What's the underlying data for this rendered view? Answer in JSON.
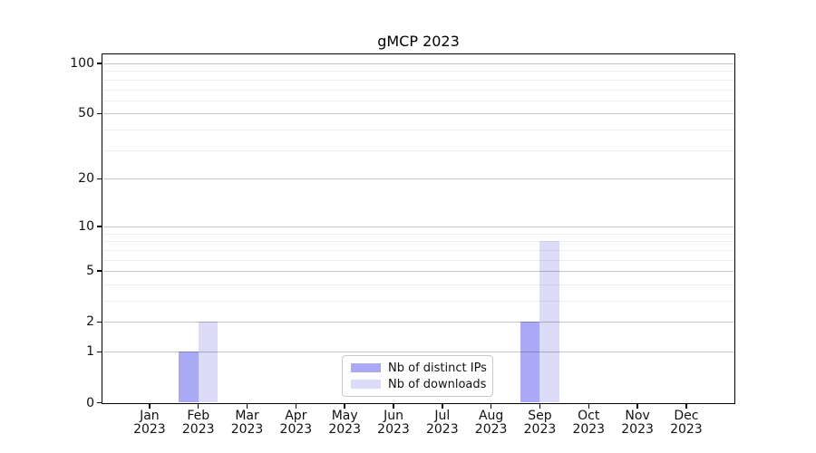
{
  "title": "gMCP 2023",
  "legend": {
    "items": [
      {
        "label": "Nb of distinct IPs",
        "color": "#a9a9f6"
      },
      {
        "label": "Nb of downloads",
        "color": "#dcdcf8"
      }
    ]
  },
  "chart_data": {
    "type": "bar",
    "title": "gMCP 2023",
    "categories": [
      "Jan 2023",
      "Feb 2023",
      "Mar 2023",
      "Apr 2023",
      "May 2023",
      "Jun 2023",
      "Jul 2023",
      "Aug 2023",
      "Sep 2023",
      "Oct 2023",
      "Nov 2023",
      "Dec 2023"
    ],
    "series": [
      {
        "name": "Nb of distinct IPs",
        "color": "#a9a9f6",
        "values": [
          0,
          1,
          0,
          0,
          0,
          0,
          0,
          0,
          2,
          0,
          0,
          0
        ]
      },
      {
        "name": "Nb of downloads",
        "color": "#dcdcf8",
        "values": [
          0,
          2,
          0,
          0,
          0,
          0,
          0,
          0,
          8,
          0,
          0,
          0
        ]
      }
    ],
    "xlabel": "",
    "ylabel": "",
    "y_scale": "log1p",
    "y_major_ticks": [
      0,
      1,
      2,
      5,
      10,
      20,
      50,
      100
    ],
    "y_minor_gridlines": [
      3,
      4,
      6,
      7,
      8,
      9,
      30,
      40,
      60,
      70,
      80,
      90
    ],
    "ylim": [
      0,
      110
    ],
    "grid": true,
    "legend_position": "lower center"
  }
}
